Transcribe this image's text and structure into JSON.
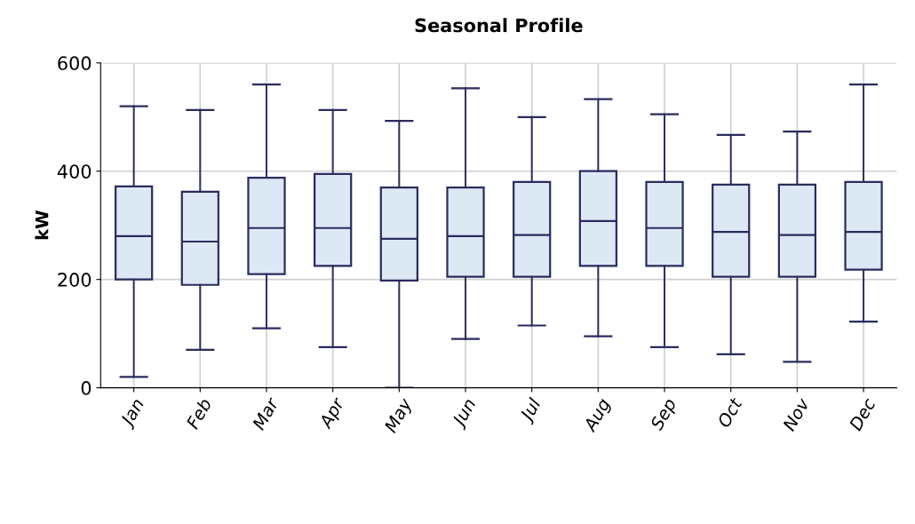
{
  "chart_data": {
    "type": "box",
    "title": "Seasonal Profile",
    "ylabel": "kW",
    "categories": [
      "Jan",
      "Feb",
      "Mar",
      "Apr",
      "May",
      "Jun",
      "Jul",
      "Aug",
      "Sep",
      "Oct",
      "Nov",
      "Dec"
    ],
    "boxes": [
      {
        "low": 20,
        "q1": 200,
        "median": 280,
        "q3": 372,
        "high": 520
      },
      {
        "low": 70,
        "q1": 190,
        "median": 270,
        "q3": 362,
        "high": 513
      },
      {
        "low": 110,
        "q1": 210,
        "median": 295,
        "q3": 388,
        "high": 560
      },
      {
        "low": 75,
        "q1": 225,
        "median": 295,
        "q3": 395,
        "high": 513
      },
      {
        "low": 0,
        "q1": 198,
        "median": 275,
        "q3": 370,
        "high": 493
      },
      {
        "low": 90,
        "q1": 205,
        "median": 280,
        "q3": 370,
        "high": 553
      },
      {
        "low": 115,
        "q1": 205,
        "median": 282,
        "q3": 380,
        "high": 500
      },
      {
        "low": 95,
        "q1": 225,
        "median": 308,
        "q3": 400,
        "high": 533
      },
      {
        "low": 75,
        "q1": 225,
        "median": 295,
        "q3": 380,
        "high": 505
      },
      {
        "low": 62,
        "q1": 205,
        "median": 288,
        "q3": 375,
        "high": 467
      },
      {
        "low": 48,
        "q1": 205,
        "median": 282,
        "q3": 375,
        "high": 473
      },
      {
        "low": 122,
        "q1": 218,
        "median": 288,
        "q3": 380,
        "high": 560
      }
    ],
    "color": "#dce9f5",
    "ylim": [
      0,
      600
    ],
    "yticks": [
      0,
      200,
      400,
      600
    ],
    "grid": true
  }
}
